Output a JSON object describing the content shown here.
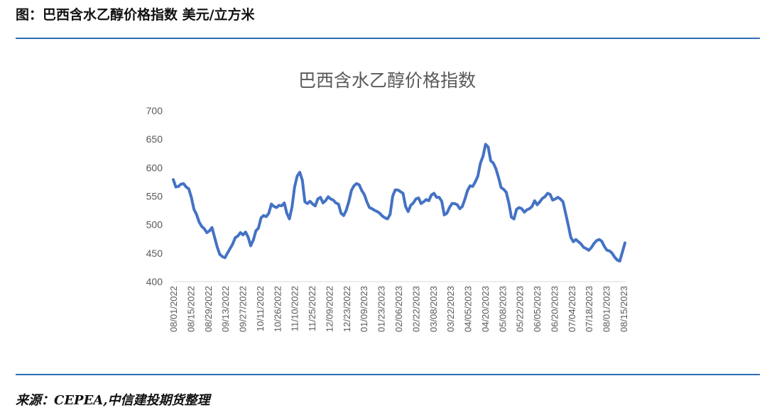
{
  "figure": {
    "caption": "图：巴西含水乙醇价格指数 美元/立方米",
    "source": "来源：CEPEA,中信建投期货整理"
  },
  "colors": {
    "line": "#4472c4",
    "rule": "#2e6db4",
    "axis": "#d9d9d9",
    "text": "#595959"
  },
  "chart_data": {
    "type": "line",
    "title": "巴西含水乙醇价格指数",
    "xlabel": "",
    "ylabel": "",
    "ylim": [
      400,
      700
    ],
    "yticks": [
      400,
      450,
      500,
      550,
      600,
      650,
      700
    ],
    "grid": false,
    "legend": "none",
    "xtick_labels": [
      "08/01/2022",
      "08/15/2022",
      "08/29/2022",
      "09/13/2022",
      "09/27/2022",
      "10/11/2022",
      "10/26/2022",
      "11/10/2022",
      "11/25/2022",
      "12/09/2022",
      "12/23/2022",
      "01/09/2023",
      "01/23/2023",
      "02/06/2023",
      "02/22/2023",
      "03/08/2023",
      "03/22/2023",
      "04/05/2023",
      "04/20/2023",
      "05/08/2023",
      "05/22/2023",
      "06/05/2023",
      "06/20/2023",
      "07/04/2023",
      "07/18/2023",
      "08/01/2023",
      "08/15/2023"
    ],
    "series": [
      {
        "values": [
          579,
          566,
          567,
          571,
          572,
          566,
          563,
          548,
          527,
          518,
          505,
          497,
          493,
          486,
          489,
          495,
          478,
          461,
          448,
          444,
          442,
          450,
          458,
          466,
          477,
          480,
          486,
          482,
          487,
          478,
          463,
          473,
          489,
          494,
          512,
          516,
          514,
          520,
          536,
          532,
          530,
          534,
          533,
          538,
          520,
          510,
          531,
          566,
          585,
          592,
          578,
          540,
          537,
          541,
          536,
          533,
          545,
          548,
          538,
          542,
          549,
          545,
          543,
          538,
          536,
          520,
          516,
          525,
          540,
          560,
          568,
          572,
          570,
          560,
          553,
          540,
          530,
          528,
          525,
          523,
          520,
          515,
          512,
          510,
          518,
          550,
          561,
          561,
          558,
          555,
          532,
          523,
          534,
          538,
          545,
          547,
          537,
          540,
          544,
          542,
          552,
          555,
          548,
          548,
          541,
          517,
          520,
          530,
          537,
          537,
          535,
          528,
          532,
          545,
          560,
          568,
          567,
          575,
          585,
          608,
          620,
          641,
          636,
          612,
          608,
          598,
          583,
          565,
          562,
          557,
          538,
          513,
          510,
          527,
          530,
          528,
          522,
          526,
          528,
          532,
          542,
          535,
          540,
          546,
          549,
          555,
          553,
          543,
          545,
          548,
          545,
          540,
          520,
          500,
          478,
          470,
          474,
          470,
          466,
          460,
          458,
          455,
          460,
          467,
          472,
          474,
          471,
          462,
          455,
          454,
          450,
          443,
          438,
          436,
          452,
          468
        ]
      }
    ]
  }
}
